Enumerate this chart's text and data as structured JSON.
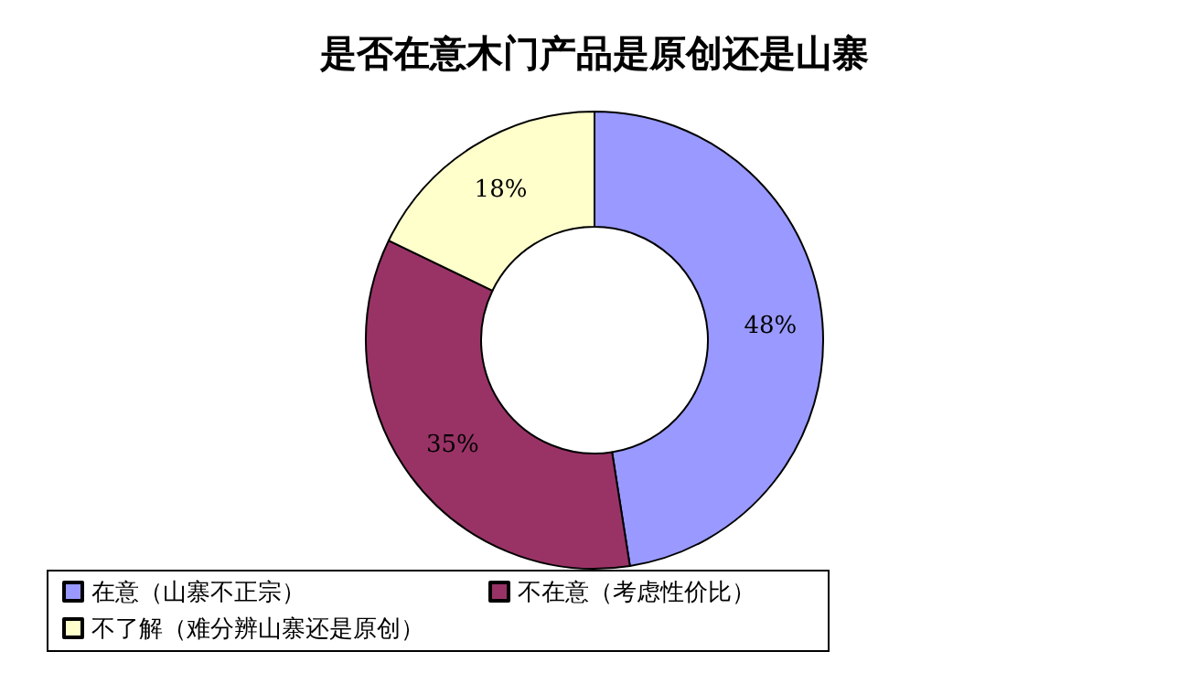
{
  "chart_data": {
    "type": "donut",
    "title": "是否在意木门产品是原创还是山寨",
    "categories": [
      "在意（山寨不正宗）",
      "不在意（考虑性价比）",
      "不了解（难分辨山寨还是原创）"
    ],
    "values": [
      48,
      35,
      18
    ],
    "colors": [
      "#9999ff",
      "#993366",
      "#ffffcc"
    ],
    "value_labels": [
      "48%",
      "35%",
      "18%"
    ],
    "legend": "bottom"
  }
}
